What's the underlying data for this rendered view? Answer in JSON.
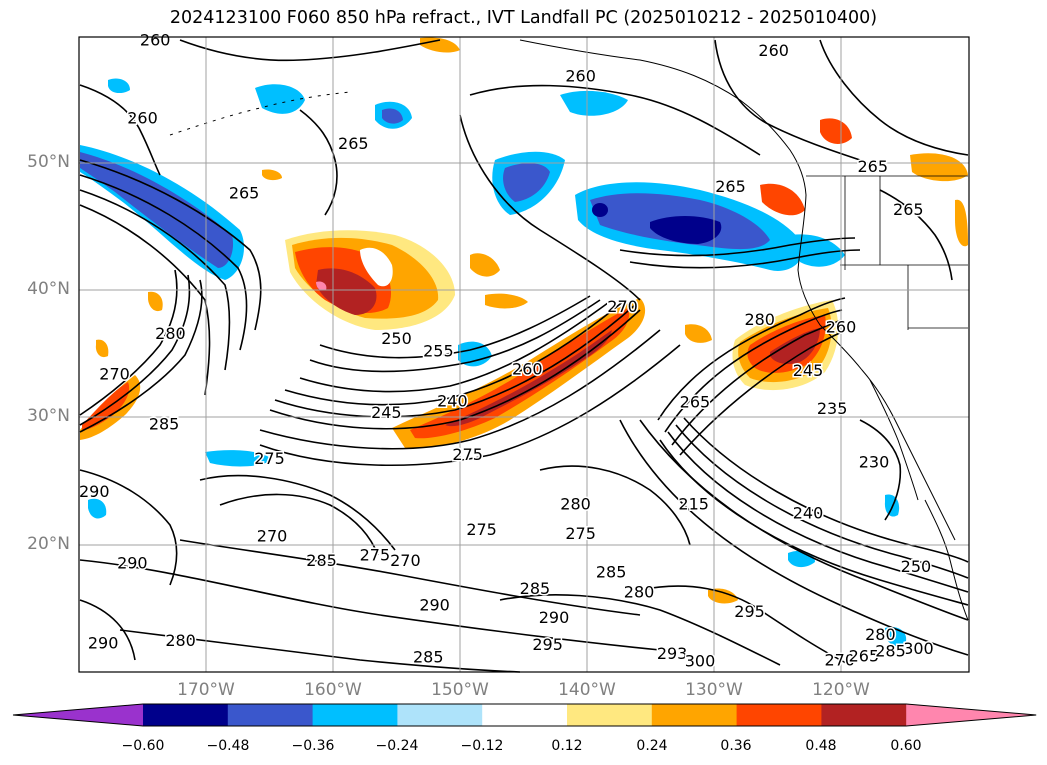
{
  "title": "2024123100 F060 850 hPa refract., IVT Landfall PC (2025010212 - 2025010400)",
  "axes": {
    "lat_labels": [
      "50°N",
      "40°N",
      "30°N",
      "20°N"
    ],
    "lon_labels": [
      "170°W",
      "160°W",
      "150°W",
      "140°W",
      "130°W",
      "120°W"
    ]
  },
  "colorbar": {
    "colors": [
      "#9a32cd",
      "#00008b",
      "#3a57cc",
      "#00bfff",
      "#aee3fa",
      "#ffffff",
      "#ffe880",
      "#ffa500",
      "#ff4500",
      "#b22222",
      "#ff86ae"
    ],
    "ticks": [
      "−0.60",
      "−0.48",
      "−0.36",
      "−0.24",
      "−0.12",
      "0.12",
      "0.24",
      "0.36",
      "0.48",
      "0.60"
    ]
  },
  "contour_labels": [
    {
      "text": "260",
      "lon": -174,
      "lat": 59.6
    },
    {
      "text": "260",
      "lon": -175,
      "lat": 53.5
    },
    {
      "text": "265",
      "lon": -167,
      "lat": 47.6
    },
    {
      "text": "265",
      "lon": -158.4,
      "lat": 51.5
    },
    {
      "text": "260",
      "lon": -140.5,
      "lat": 56.8
    },
    {
      "text": "260",
      "lon": -125.3,
      "lat": 58.8
    },
    {
      "text": "265",
      "lon": -128.7,
      "lat": 48.1
    },
    {
      "text": "265",
      "lon": -117.5,
      "lat": 49.7
    },
    {
      "text": "265",
      "lon": -114.7,
      "lat": 46.3
    },
    {
      "text": "280",
      "lon": -126.4,
      "lat": 37.7
    },
    {
      "text": "245",
      "lon": -122.6,
      "lat": 33.7
    },
    {
      "text": "260",
      "lon": -120,
      "lat": 37.1
    },
    {
      "text": "235",
      "lon": -120.7,
      "lat": 30.7
    },
    {
      "text": "230",
      "lon": -117.4,
      "lat": 26.5
    },
    {
      "text": "240",
      "lon": -122.6,
      "lat": 22.5
    },
    {
      "text": "265",
      "lon": -131.5,
      "lat": 31.2
    },
    {
      "text": "215",
      "lon": -131.6,
      "lat": 23.2
    },
    {
      "text": "250",
      "lon": -114.1,
      "lat": 18.3
    },
    {
      "text": "250",
      "lon": -155,
      "lat": 36.2
    },
    {
      "text": "255",
      "lon": -151.7,
      "lat": 35.2
    },
    {
      "text": "260",
      "lon": -144.7,
      "lat": 33.8
    },
    {
      "text": "270",
      "lon": -137.2,
      "lat": 38.7
    },
    {
      "text": "240",
      "lon": -150.6,
      "lat": 31.3
    },
    {
      "text": "245",
      "lon": -155.8,
      "lat": 30.4
    },
    {
      "text": "275",
      "lon": -149.4,
      "lat": 27.1
    },
    {
      "text": "275",
      "lon": -148.3,
      "lat": 21.2
    },
    {
      "text": "275",
      "lon": -140.5,
      "lat": 20.9
    },
    {
      "text": "280",
      "lon": -140.9,
      "lat": 23.2
    },
    {
      "text": "270",
      "lon": -177.2,
      "lat": 33.4
    },
    {
      "text": "280",
      "lon": -172.8,
      "lat": 36.6
    },
    {
      "text": "285",
      "lon": -173.3,
      "lat": 29.5
    },
    {
      "text": "275",
      "lon": -165,
      "lat": 26.8
    },
    {
      "text": "290",
      "lon": -178.8,
      "lat": 24.2
    },
    {
      "text": "270",
      "lon": -164.8,
      "lat": 20.7
    },
    {
      "text": "285",
      "lon": -160.9,
      "lat": 18.8
    },
    {
      "text": "275",
      "lon": -156.7,
      "lat": 19.2
    },
    {
      "text": "270",
      "lon": -154.3,
      "lat": 18.8
    },
    {
      "text": "290",
      "lon": -175.8,
      "lat": 18.6
    },
    {
      "text": "290",
      "lon": -178.1,
      "lat": 12.3
    },
    {
      "text": "280",
      "lon": -172,
      "lat": 12.5
    },
    {
      "text": "290",
      "lon": -152,
      "lat": 15.3
    },
    {
      "text": "285",
      "lon": -152.5,
      "lat": 11.2
    },
    {
      "text": "285",
      "lon": -144.1,
      "lat": 16.6
    },
    {
      "text": "290",
      "lon": -142.6,
      "lat": 14.3
    },
    {
      "text": "285",
      "lon": -138.1,
      "lat": 17.9
    },
    {
      "text": "280",
      "lon": -135.9,
      "lat": 16.3
    },
    {
      "text": "295",
      "lon": -143.1,
      "lat": 12.2
    },
    {
      "text": "295",
      "lon": -127.2,
      "lat": 14.8
    },
    {
      "text": "293",
      "lon": -133.3,
      "lat": 11.5
    },
    {
      "text": "300",
      "lon": -131.1,
      "lat": 10.9
    },
    {
      "text": "300",
      "lon": -113.9,
      "lat": 11.9
    },
    {
      "text": "270",
      "lon": -120.1,
      "lat": 11
    },
    {
      "text": "265",
      "lon": -118.2,
      "lat": 11.3
    },
    {
      "text": "280",
      "lon": -116.9,
      "lat": 13
    },
    {
      "text": "285",
      "lon": -116.1,
      "lat": 11.7
    }
  ]
}
